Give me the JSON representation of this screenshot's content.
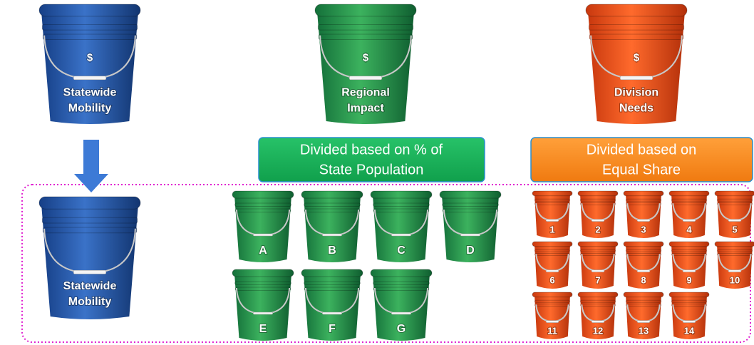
{
  "top_buckets": [
    {
      "symbol": "$",
      "label_lines": [
        "Statewide",
        "Mobility"
      ]
    },
    {
      "symbol": "$",
      "label_lines": [
        "Regional",
        "Impact"
      ]
    },
    {
      "symbol": "$",
      "label_lines": [
        "Division",
        "Needs"
      ]
    }
  ],
  "banners": [
    {
      "lines": [
        "Divided based on % of",
        "State Population"
      ]
    },
    {
      "lines": [
        "Divided based on",
        "Equal Share"
      ]
    }
  ],
  "statewide_bucket": {
    "label_lines": [
      "Statewide",
      "Mobility"
    ]
  },
  "regions": [
    "A",
    "B",
    "C",
    "D",
    "E",
    "F",
    "G"
  ],
  "divisions": [
    "1",
    "2",
    "3",
    "4",
    "5",
    "6",
    "7",
    "8",
    "9",
    "10",
    "11",
    "12",
    "13",
    "14"
  ]
}
